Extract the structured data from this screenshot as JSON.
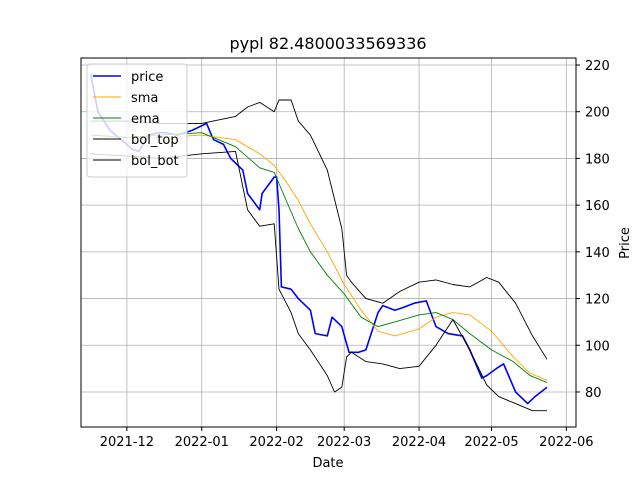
{
  "chart_data": {
    "type": "line",
    "title": "pypl 82.4800033569336",
    "xlabel": "Date",
    "ylabel": "Price",
    "x_ticks": [
      "2021-12",
      "2022-01",
      "2022-02",
      "2022-03",
      "2022-04",
      "2022-05",
      "2022-06"
    ],
    "y_ticks": [
      80,
      100,
      120,
      140,
      160,
      180,
      200,
      220
    ],
    "ylim": [
      65,
      223
    ],
    "xlim": [
      "2021-11-12",
      "2022-06-05"
    ],
    "grid": true,
    "legend_position": "upper-left",
    "series": [
      {
        "name": "price",
        "color": "#0000ff",
        "x": [
          "2021-11-16",
          "2021-11-19",
          "2021-11-24",
          "2021-12-01",
          "2021-12-03",
          "2021-12-06",
          "2021-12-10",
          "2021-12-14",
          "2021-12-17",
          "2021-12-22",
          "2021-12-28",
          "2022-01-03",
          "2022-01-05",
          "2022-01-06",
          "2022-01-10",
          "2022-01-13",
          "2022-01-18",
          "2022-01-20",
          "2022-01-25",
          "2022-01-26",
          "2022-01-31",
          "2022-02-01",
          "2022-02-02",
          "2022-02-03",
          "2022-02-07",
          "2022-02-10",
          "2022-02-15",
          "2022-02-17",
          "2022-02-22",
          "2022-02-24",
          "2022-02-28",
          "2022-03-03",
          "2022-03-07",
          "2022-03-10",
          "2022-03-15",
          "2022-03-17",
          "2022-03-22",
          "2022-03-25",
          "2022-03-30",
          "2022-04-04",
          "2022-04-08",
          "2022-04-13",
          "2022-04-19",
          "2022-04-22",
          "2022-04-27",
          "2022-04-29",
          "2022-05-03",
          "2022-05-06",
          "2022-05-11",
          "2022-05-16",
          "2022-05-19",
          "2022-05-24"
        ],
        "y": [
          216,
          200,
          192,
          186,
          184,
          183,
          190,
          191,
          191,
          190,
          192,
          195,
          190,
          188,
          186,
          180,
          175,
          165,
          158,
          165,
          172,
          172,
          158,
          125,
          124,
          120,
          115,
          105,
          104,
          112,
          108,
          97,
          97,
          98,
          114,
          117,
          115,
          116,
          118,
          119,
          108,
          105,
          104,
          98,
          86,
          87,
          90,
          92,
          80,
          75,
          78,
          82
        ]
      },
      {
        "name": "sma",
        "color": "#ffa500",
        "x": [
          "2021-11-16",
          "2021-12-01",
          "2021-12-15",
          "2022-01-01",
          "2022-01-15",
          "2022-01-25",
          "2022-01-31",
          "2022-02-05",
          "2022-02-10",
          "2022-02-15",
          "2022-02-22",
          "2022-03-01",
          "2022-03-08",
          "2022-03-15",
          "2022-03-22",
          "2022-04-01",
          "2022-04-08",
          "2022-04-15",
          "2022-04-22",
          "2022-05-01",
          "2022-05-10",
          "2022-05-17",
          "2022-05-24"
        ],
        "y": [
          190,
          189,
          189,
          190,
          188,
          182,
          177,
          170,
          162,
          152,
          140,
          126,
          115,
          106,
          104,
          107,
          112,
          114,
          113,
          106,
          95,
          88,
          85
        ]
      },
      {
        "name": "ema",
        "color": "#008000",
        "x": [
          "2021-11-16",
          "2021-12-01",
          "2021-12-15",
          "2022-01-01",
          "2022-01-15",
          "2022-01-25",
          "2022-01-31",
          "2022-02-05",
          "2022-02-10",
          "2022-02-15",
          "2022-02-22",
          "2022-03-01",
          "2022-03-08",
          "2022-03-15",
          "2022-03-22",
          "2022-04-01",
          "2022-04-08",
          "2022-04-15",
          "2022-04-22",
          "2022-05-01",
          "2022-05-10",
          "2022-05-17",
          "2022-05-24"
        ],
        "y": [
          190,
          189,
          190,
          191,
          185,
          176,
          174,
          162,
          150,
          140,
          130,
          122,
          112,
          108,
          110,
          113,
          114,
          111,
          105,
          98,
          93,
          87,
          84
        ]
      },
      {
        "name": "bol_top",
        "color": "#000000",
        "x": [
          "2021-11-16",
          "2021-12-01",
          "2021-12-15",
          "2022-01-01",
          "2022-01-15",
          "2022-01-20",
          "2022-01-25",
          "2022-01-31",
          "2022-02-02",
          "2022-02-07",
          "2022-02-10",
          "2022-02-15",
          "2022-02-22",
          "2022-02-28",
          "2022-03-02",
          "2022-03-04",
          "2022-03-10",
          "2022-03-17",
          "2022-03-24",
          "2022-04-01",
          "2022-04-08",
          "2022-04-15",
          "2022-04-22",
          "2022-04-29",
          "2022-05-04",
          "2022-05-11",
          "2022-05-18",
          "2022-05-24"
        ],
        "y": [
          196,
          196,
          195,
          195,
          198,
          202,
          204,
          200,
          205,
          205,
          196,
          190,
          175,
          150,
          130,
          127,
          120,
          118,
          123,
          127,
          128,
          126,
          125,
          129,
          127,
          118,
          104,
          94
        ]
      },
      {
        "name": "bol_bot",
        "color": "#000000",
        "x": [
          "2021-11-16",
          "2021-12-01",
          "2021-12-15",
          "2022-01-01",
          "2022-01-15",
          "2022-01-20",
          "2022-01-25",
          "2022-01-31",
          "2022-02-02",
          "2022-02-07",
          "2022-02-10",
          "2022-02-15",
          "2022-02-22",
          "2022-02-25",
          "2022-02-28",
          "2022-03-02",
          "2022-03-04",
          "2022-03-10",
          "2022-03-17",
          "2022-03-24",
          "2022-04-01",
          "2022-04-08",
          "2022-04-15",
          "2022-04-22",
          "2022-04-29",
          "2022-05-04",
          "2022-05-11",
          "2022-05-18",
          "2022-05-24"
        ],
        "y": [
          182,
          181,
          180,
          182,
          183,
          158,
          151,
          152,
          124,
          114,
          105,
          98,
          87,
          80,
          82,
          95,
          97,
          93,
          92,
          90,
          91,
          100,
          111,
          98,
          83,
          78,
          75,
          72,
          72
        ]
      }
    ]
  }
}
